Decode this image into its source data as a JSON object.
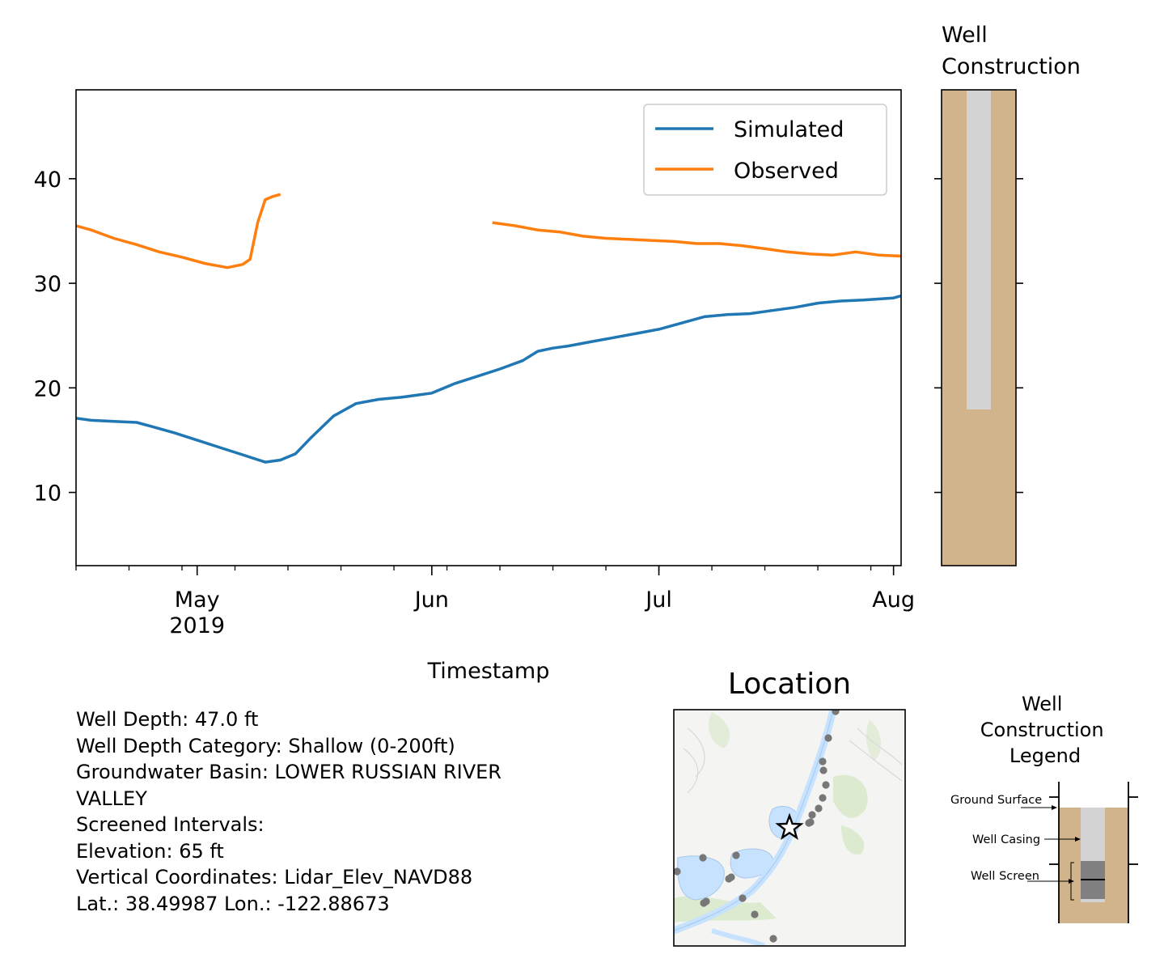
{
  "chart_data": [
    {
      "type": "line",
      "xlabel": "Timestamp",
      "ylabel": "",
      "x_tick_labels": [
        "May\n2019",
        "Jun",
        "Jul",
        "Aug"
      ],
      "y_tick_labels": [
        "10",
        "20",
        "30",
        "40"
      ],
      "ylim": [
        3,
        48.5
      ],
      "xlim": [
        "2019-04-15",
        "2019-08-02"
      ],
      "grid": false,
      "legend_position": "top-right",
      "series": [
        {
          "name": "Simulated",
          "color": "#1f77b4",
          "x": [
            "2019-04-15",
            "2019-04-17",
            "2019-04-20",
            "2019-04-23",
            "2019-04-25",
            "2019-04-28",
            "2019-05-01",
            "2019-05-04",
            "2019-05-07",
            "2019-05-10",
            "2019-05-12",
            "2019-05-14",
            "2019-05-16",
            "2019-05-19",
            "2019-05-22",
            "2019-05-25",
            "2019-05-28",
            "2019-06-01",
            "2019-06-04",
            "2019-06-07",
            "2019-06-10",
            "2019-06-13",
            "2019-06-15",
            "2019-06-17",
            "2019-06-19",
            "2019-06-22",
            "2019-06-25",
            "2019-06-28",
            "2019-07-01",
            "2019-07-04",
            "2019-07-07",
            "2019-07-10",
            "2019-07-13",
            "2019-07-16",
            "2019-07-19",
            "2019-07-22",
            "2019-07-25",
            "2019-07-28",
            "2019-08-01",
            "2019-08-02"
          ],
          "values": [
            17.1,
            16.9,
            16.8,
            16.7,
            16.3,
            15.7,
            15.0,
            14.3,
            13.6,
            12.9,
            13.1,
            13.7,
            15.2,
            17.3,
            18.5,
            18.9,
            19.1,
            19.5,
            20.4,
            21.1,
            21.8,
            22.6,
            23.5,
            23.8,
            24.0,
            24.4,
            24.8,
            25.2,
            25.6,
            26.2,
            26.8,
            27.0,
            27.1,
            27.4,
            27.7,
            28.1,
            28.3,
            28.4,
            28.6,
            28.8
          ]
        },
        {
          "name": "Observed",
          "color": "#ff7f0e",
          "segments": [
            {
              "x": [
                "2019-04-15",
                "2019-04-17",
                "2019-04-20",
                "2019-04-23",
                "2019-04-26",
                "2019-04-29",
                "2019-05-02",
                "2019-05-05",
                "2019-05-07",
                "2019-05-08",
                "2019-05-09",
                "2019-05-10",
                "2019-05-11",
                "2019-05-12"
              ],
              "values": [
                35.5,
                35.1,
                34.3,
                33.7,
                33.0,
                32.5,
                31.9,
                31.5,
                31.8,
                32.3,
                35.8,
                38.0,
                38.3,
                38.5
              ]
            },
            {
              "x": [
                "2019-06-09",
                "2019-06-12",
                "2019-06-15",
                "2019-06-18",
                "2019-06-21",
                "2019-06-24",
                "2019-06-27",
                "2019-06-30",
                "2019-07-03",
                "2019-07-06",
                "2019-07-09",
                "2019-07-12",
                "2019-07-15",
                "2019-07-18",
                "2019-07-21",
                "2019-07-24",
                "2019-07-27",
                "2019-07-30",
                "2019-08-02"
              ],
              "values": [
                35.8,
                35.5,
                35.1,
                34.9,
                34.5,
                34.3,
                34.2,
                34.1,
                34.0,
                33.8,
                33.8,
                33.6,
                33.3,
                33.0,
                32.8,
                32.7,
                33.0,
                32.7,
                32.6
              ]
            }
          ]
        }
      ]
    }
  ],
  "well_construction_title": "Well\nConstruction",
  "location_title": "Location",
  "legend_panel": {
    "title": "Well\nConstruction\nLegend",
    "ground_surface_label": "Ground Surface",
    "well_casing_label": "Well Casing",
    "well_screen_label": "Well Screen"
  },
  "info_lines": [
    "Well Depth: 47.0 ft",
    "Well Depth Category: Shallow (0-200ft)",
    "Groundwater Basin: LOWER RUSSIAN RIVER",
    "VALLEY",
    "Screened Intervals:",
    "Elevation: 65 ft",
    "Vertical Coordinates: Lidar_Elev_NAVD88",
    "Lat.: 38.49987 Lon.: -122.88673"
  ],
  "colors": {
    "simulated": "#1f77b4",
    "observed": "#ff7f0e",
    "ground": "#d2b48c",
    "casing": "#d3d3d3",
    "screen": "#808080",
    "water": "#c6e2ff",
    "vegetation": "#dcebcf"
  }
}
